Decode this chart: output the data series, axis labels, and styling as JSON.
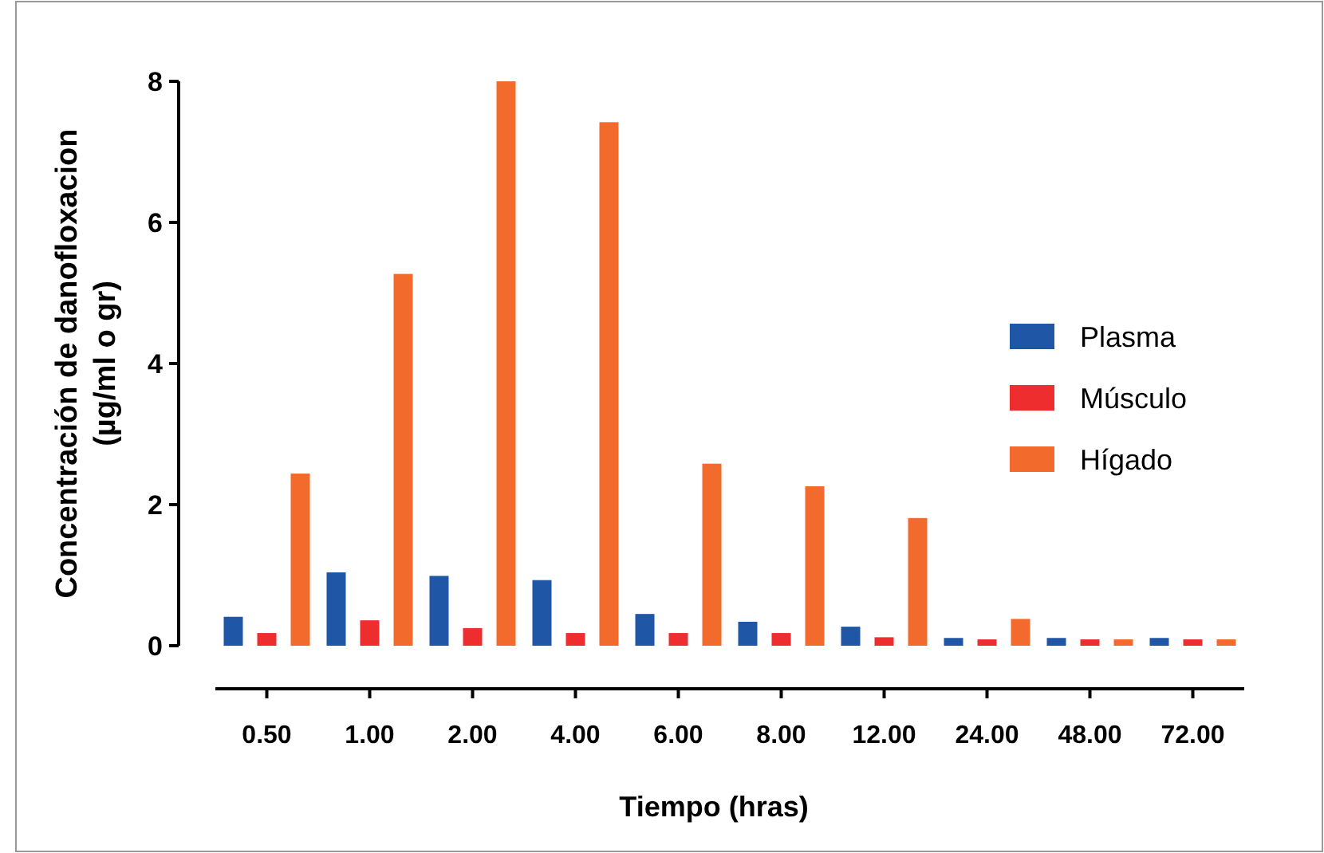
{
  "chart_data": {
    "type": "bar",
    "xlabel": "Tiempo (hras)",
    "ylabel": "Concentración de danofloxacion\n(µg/ml o gr)",
    "categories": [
      "0.50",
      "1.00",
      "2.00",
      "4.00",
      "6.00",
      "8.00",
      "12.00",
      "24.00",
      "48.00",
      "72.00"
    ],
    "series": [
      {
        "name": "Plasma",
        "color": "#1f56a6",
        "values": [
          0.41,
          1.04,
          0.99,
          0.93,
          0.45,
          0.34,
          0.27,
          0.11,
          0.11,
          0.11
        ]
      },
      {
        "name": "Músculo",
        "color": "#ee2e2e",
        "values": [
          0.18,
          0.36,
          0.25,
          0.18,
          0.18,
          0.18,
          0.12,
          0.09,
          0.09,
          0.09
        ]
      },
      {
        "name": "Hígado",
        "color": "#f26b2c",
        "values": [
          2.44,
          5.27,
          8.0,
          7.42,
          2.58,
          2.26,
          1.81,
          0.38,
          0.09,
          0.09
        ]
      }
    ],
    "ylim": [
      0,
      8
    ],
    "yticks": [
      0,
      2,
      4,
      6,
      8
    ],
    "grid": false,
    "legend": "right"
  }
}
